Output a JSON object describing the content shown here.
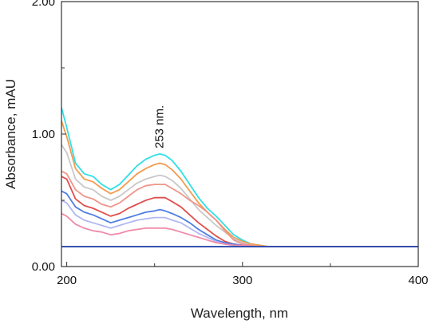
{
  "chart_data": {
    "type": "line",
    "title": "",
    "xlabel": "Wavelength, nm",
    "ylabel": "Absorbance, mAU",
    "xlim": [
      197,
      400
    ],
    "ylim": [
      0.0,
      2.0
    ],
    "x_ticks": [
      {
        "value": 200,
        "label": "200"
      },
      {
        "value": 300,
        "label": "300"
      },
      {
        "value": 400,
        "label": "400"
      }
    ],
    "x_minor_ticks": [
      250,
      350
    ],
    "y_ticks": [
      {
        "value": 0.0,
        "label": "0.00"
      },
      {
        "value": 1.0,
        "label": "1.00"
      },
      {
        "value": 2.0,
        "label": "2.00"
      }
    ],
    "y_minor_ticks": [
      0.5,
      1.5
    ],
    "annotation": {
      "text": "253 nm.",
      "x": 253
    },
    "grid": false,
    "x": [
      197,
      200,
      205,
      210,
      215,
      220,
      225,
      230,
      235,
      240,
      245,
      250,
      253,
      256,
      260,
      265,
      270,
      275,
      280,
      285,
      290,
      295,
      300,
      305,
      310,
      315,
      320,
      330,
      340,
      360,
      380,
      400
    ],
    "series": [
      {
        "color": "#2fe0e6",
        "values": [
          1.2,
          1.05,
          0.78,
          0.7,
          0.68,
          0.62,
          0.58,
          0.62,
          0.69,
          0.76,
          0.81,
          0.84,
          0.85,
          0.84,
          0.8,
          0.72,
          0.62,
          0.52,
          0.44,
          0.38,
          0.31,
          0.24,
          0.2,
          0.17,
          0.16,
          0.15,
          0.15,
          0.15,
          0.15,
          0.15,
          0.15,
          0.15
        ]
      },
      {
        "color": "#f39b4e",
        "values": [
          1.1,
          0.98,
          0.74,
          0.66,
          0.64,
          0.59,
          0.55,
          0.58,
          0.64,
          0.7,
          0.74,
          0.77,
          0.78,
          0.77,
          0.73,
          0.66,
          0.57,
          0.48,
          0.41,
          0.35,
          0.28,
          0.22,
          0.19,
          0.17,
          0.16,
          0.15,
          0.15,
          0.15,
          0.15,
          0.15,
          0.15,
          0.15
        ]
      },
      {
        "color": "#c8c8c8",
        "values": [
          0.92,
          0.86,
          0.66,
          0.6,
          0.58,
          0.53,
          0.5,
          0.53,
          0.58,
          0.63,
          0.66,
          0.68,
          0.69,
          0.68,
          0.65,
          0.59,
          0.51,
          0.43,
          0.37,
          0.31,
          0.26,
          0.21,
          0.18,
          0.16,
          0.15,
          0.15,
          0.15,
          0.15,
          0.15,
          0.15,
          0.15,
          0.15
        ]
      },
      {
        "color": "#f0958a",
        "values": [
          0.72,
          0.7,
          0.58,
          0.53,
          0.51,
          0.47,
          0.45,
          0.48,
          0.53,
          0.58,
          0.61,
          0.62,
          0.62,
          0.62,
          0.59,
          0.55,
          0.5,
          0.46,
          0.41,
          0.35,
          0.27,
          0.2,
          0.17,
          0.16,
          0.15,
          0.15,
          0.15,
          0.15,
          0.15,
          0.15,
          0.15,
          0.15
        ]
      },
      {
        "color": "#e0504f",
        "values": [
          0.68,
          0.66,
          0.51,
          0.46,
          0.44,
          0.41,
          0.38,
          0.4,
          0.44,
          0.47,
          0.5,
          0.52,
          0.52,
          0.52,
          0.49,
          0.45,
          0.39,
          0.33,
          0.28,
          0.23,
          0.19,
          0.17,
          0.16,
          0.15,
          0.15,
          0.15,
          0.15,
          0.15,
          0.15,
          0.15,
          0.15,
          0.15
        ]
      },
      {
        "color": "#4f7ee0",
        "values": [
          0.57,
          0.55,
          0.45,
          0.41,
          0.39,
          0.36,
          0.33,
          0.35,
          0.37,
          0.39,
          0.41,
          0.42,
          0.43,
          0.42,
          0.4,
          0.37,
          0.33,
          0.28,
          0.24,
          0.2,
          0.18,
          0.17,
          0.16,
          0.15,
          0.15,
          0.15,
          0.15,
          0.15,
          0.15,
          0.15,
          0.15,
          0.15
        ]
      },
      {
        "color": "#b0b8f2",
        "values": [
          0.5,
          0.48,
          0.39,
          0.35,
          0.33,
          0.31,
          0.29,
          0.31,
          0.33,
          0.35,
          0.36,
          0.37,
          0.37,
          0.37,
          0.35,
          0.33,
          0.29,
          0.25,
          0.22,
          0.19,
          0.17,
          0.16,
          0.16,
          0.15,
          0.15,
          0.15,
          0.15,
          0.15,
          0.15,
          0.15,
          0.15,
          0.15
        ]
      },
      {
        "color": "#f08aa8",
        "values": [
          0.4,
          0.38,
          0.32,
          0.29,
          0.27,
          0.26,
          0.24,
          0.25,
          0.27,
          0.28,
          0.29,
          0.29,
          0.29,
          0.29,
          0.28,
          0.26,
          0.24,
          0.22,
          0.2,
          0.18,
          0.17,
          0.16,
          0.16,
          0.15,
          0.15,
          0.15,
          0.15,
          0.15,
          0.15,
          0.15,
          0.15,
          0.15
        ]
      },
      {
        "color": "#a0a0a0",
        "values": [
          0.15,
          0.15,
          0.15,
          0.15,
          0.15,
          0.15,
          0.15,
          0.15,
          0.15,
          0.15,
          0.15,
          0.15,
          0.15,
          0.15,
          0.15,
          0.15,
          0.15,
          0.15,
          0.15,
          0.15,
          0.15,
          0.15,
          0.15,
          0.15,
          0.15,
          0.15,
          0.15,
          0.15,
          0.15,
          0.15,
          0.15,
          0.15
        ]
      },
      {
        "color": "#1f3faa",
        "values": [
          0.15,
          0.15,
          0.15,
          0.15,
          0.15,
          0.15,
          0.15,
          0.15,
          0.15,
          0.15,
          0.15,
          0.15,
          0.15,
          0.15,
          0.15,
          0.15,
          0.15,
          0.15,
          0.15,
          0.15,
          0.15,
          0.15,
          0.15,
          0.15,
          0.15,
          0.15,
          0.15,
          0.15,
          0.15,
          0.15,
          0.15,
          0.15
        ]
      }
    ]
  }
}
